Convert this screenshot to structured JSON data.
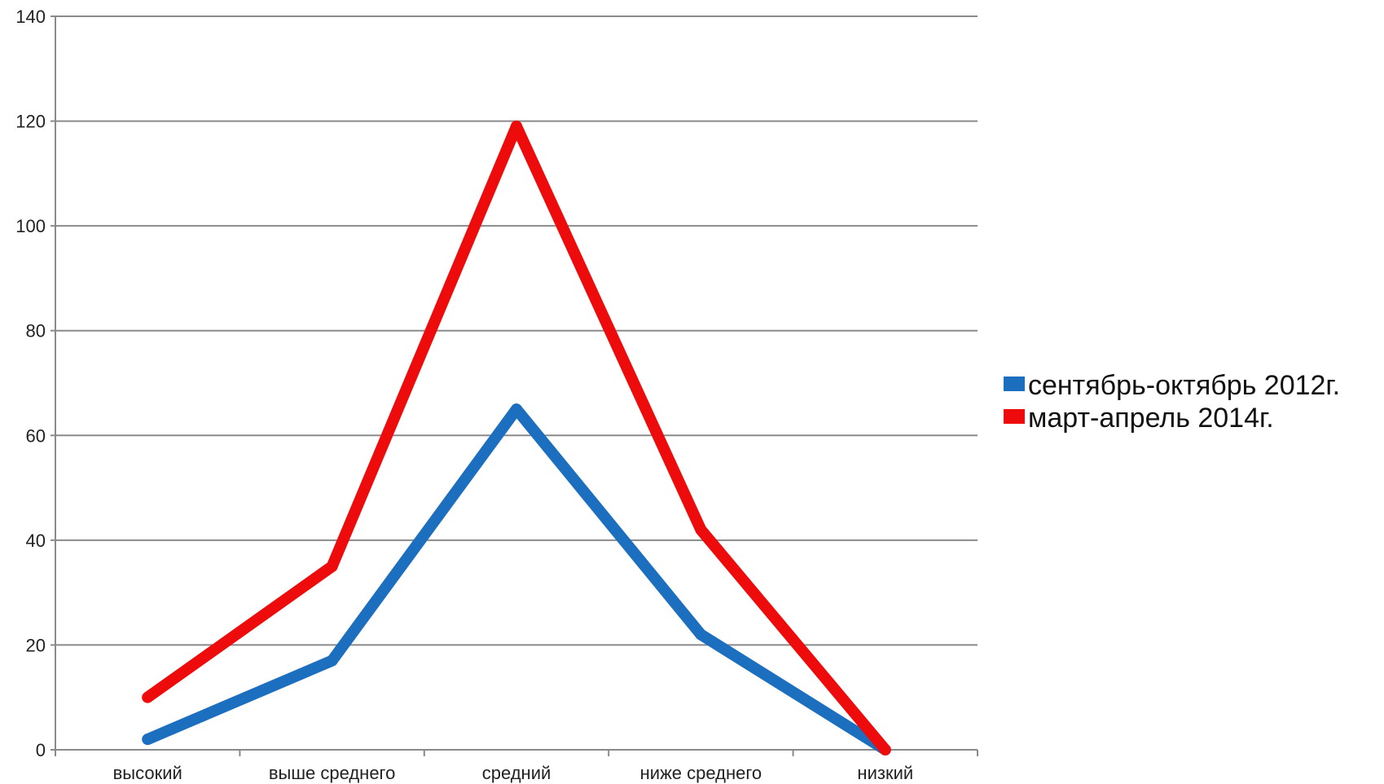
{
  "chart_data": {
    "type": "line",
    "title": "",
    "xlabel": "",
    "ylabel": "",
    "categories": [
      "высокий",
      "выше среднего",
      "средний",
      "ниже среднего",
      "низкий"
    ],
    "ylim": [
      0,
      140
    ],
    "yticks": [
      "0",
      "20",
      "40",
      "60",
      "80",
      "100",
      "120",
      "140"
    ],
    "grid": true,
    "legend_position": "right",
    "series": [
      {
        "name": "сентябрь-октябрь 2012г.",
        "color": "#1c6ebf",
        "values": [
          2,
          17,
          65,
          22,
          0
        ]
      },
      {
        "name": "март-апрель 2014г.",
        "color": "#ee0b0b",
        "values": [
          10,
          35,
          119,
          42,
          0
        ]
      }
    ]
  }
}
